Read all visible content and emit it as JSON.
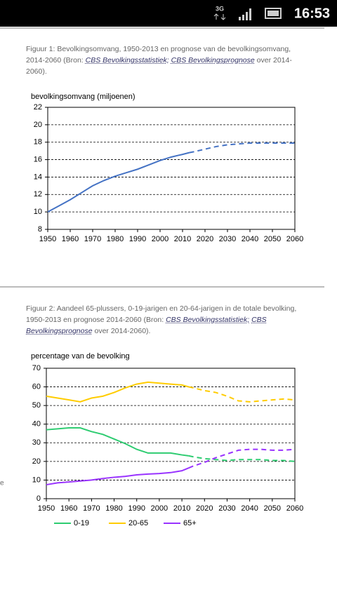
{
  "status_bar": {
    "network": "3G",
    "time": "16:53"
  },
  "edge_text": "e",
  "chart_data": [
    {
      "type": "line",
      "caption": [
        {
          "text": "Figuur 1: Bevolkingsomvang, 1950-2013 en prognose van de bevolkingsomvang, 2014-2060 (Bron: "
        },
        {
          "text": "CBS Bevolkingsstatistiek;",
          "link": true
        },
        {
          "text": " "
        },
        {
          "text": "CBS Bevolkingsprognose",
          "link": true
        },
        {
          "text": " over 2014-2060)."
        }
      ],
      "y_label": "bevolkingsomvang  (miljoenen)",
      "x": [
        1950,
        1955,
        1960,
        1965,
        1970,
        1975,
        1980,
        1985,
        1990,
        1995,
        2000,
        2005,
        2010,
        2013,
        2015,
        2020,
        2025,
        2030,
        2035,
        2040,
        2045,
        2050,
        2055,
        2060
      ],
      "series": [
        {
          "color": "#4472c4",
          "values": [
            10.0,
            10.7,
            11.4,
            12.2,
            13.0,
            13.6,
            14.1,
            14.5,
            14.9,
            15.4,
            15.9,
            16.3,
            16.6,
            16.8,
            16.9,
            17.2,
            17.5,
            17.7,
            17.8,
            17.9,
            17.9,
            17.9,
            17.9,
            17.9
          ]
        }
      ],
      "dashed_from": 2013,
      "xlim": [
        1950,
        2060
      ],
      "xticks": [
        1950,
        1960,
        1970,
        1980,
        1990,
        2000,
        2010,
        2020,
        2030,
        2040,
        2050,
        2060
      ],
      "ylim": [
        8,
        22
      ],
      "yticks": [
        8,
        10,
        12,
        14,
        16,
        18,
        20,
        22
      ],
      "grid": true
    },
    {
      "type": "line",
      "caption": [
        {
          "text": "Figuur 2: Aandeel 65-plussers, 0-19-jarigen en 20-64-jarigen in de totale bevolking, 1950-2013 en prognose 2014-2060 (Bron: "
        },
        {
          "text": "CBS Bevolkingsstatistiek;",
          "link": true
        },
        {
          "text": " "
        },
        {
          "text": "CBS Bevolkingsprognose",
          "link": true
        },
        {
          "text": " over 2014-2060)."
        }
      ],
      "y_label": "percentage  van  de bevolking",
      "x": [
        1950,
        1955,
        1960,
        1965,
        1970,
        1975,
        1980,
        1985,
        1990,
        1995,
        2000,
        2005,
        2010,
        2013,
        2015,
        2020,
        2025,
        2030,
        2035,
        2040,
        2045,
        2050,
        2055,
        2060
      ],
      "series": [
        {
          "name": "0-19",
          "color": "#2ecc71",
          "values": [
            37,
            37.5,
            38,
            38,
            36,
            34.5,
            32,
            29.5,
            26.5,
            24.5,
            24.5,
            24.5,
            23.5,
            23,
            22.5,
            21.5,
            21,
            20.5,
            21,
            21,
            21,
            20.5,
            20.5,
            20
          ]
        },
        {
          "name": "20-65",
          "color": "#ffcc00",
          "values": [
            55,
            54,
            53,
            52,
            54,
            55,
            57,
            59.5,
            61.5,
            62.5,
            62,
            61.5,
            61,
            60,
            59.5,
            58,
            57,
            55,
            52.5,
            52,
            52.5,
            53,
            53.5,
            53
          ]
        },
        {
          "name": "65+",
          "color": "#9933ff",
          "values": [
            7.5,
            8.5,
            9,
            9.5,
            10,
            10.8,
            11.5,
            12,
            12.8,
            13.2,
            13.5,
            14,
            15,
            16.5,
            17.5,
            19.5,
            22,
            24,
            26,
            26.5,
            26.5,
            26,
            26,
            26.5
          ]
        }
      ],
      "dashed_from": 2013,
      "xlim": [
        1950,
        2060
      ],
      "xticks": [
        1950,
        1960,
        1970,
        1980,
        1990,
        2000,
        2010,
        2020,
        2030,
        2040,
        2050,
        2060
      ],
      "ylim": [
        0,
        70
      ],
      "yticks": [
        0,
        10,
        20,
        30,
        40,
        50,
        60,
        70
      ],
      "grid": true
    }
  ]
}
